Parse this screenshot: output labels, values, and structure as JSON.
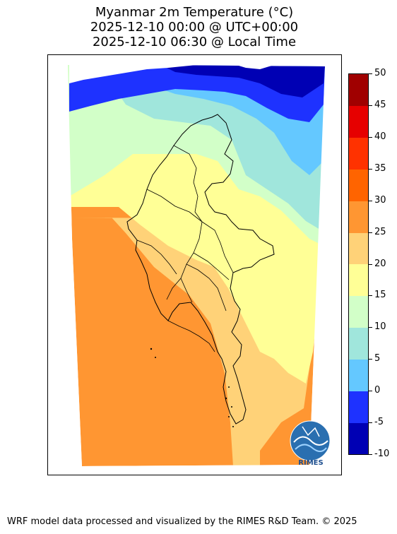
{
  "title": {
    "line1": "Myanmar 2m Temperature (°C)",
    "line2": "2025-12-10 00:00 @ UTC+00:00",
    "line3": "2025-12-10 06:30 @ Local Time"
  },
  "colorbar": {
    "levels": [
      -10,
      -5,
      0,
      5,
      10,
      15,
      20,
      25,
      30,
      35,
      40,
      45,
      50
    ],
    "tick_labels": [
      "-10",
      "-5",
      "0",
      "5",
      "10",
      "15",
      "20",
      "25",
      "30",
      "35",
      "40",
      "45",
      "50"
    ],
    "colors": [
      "#0000b4",
      "#1e32ff",
      "#64c8ff",
      "#a0e6dc",
      "#d2ffc8",
      "#ffff96",
      "#ffd278",
      "#ff9632",
      "#ff6400",
      "#ff3200",
      "#e60000",
      "#a00000"
    ]
  },
  "logo": {
    "text": "RIMES"
  },
  "footer": "WRF model data processed and visualized by the RIMES R&D Team. © 2025"
}
